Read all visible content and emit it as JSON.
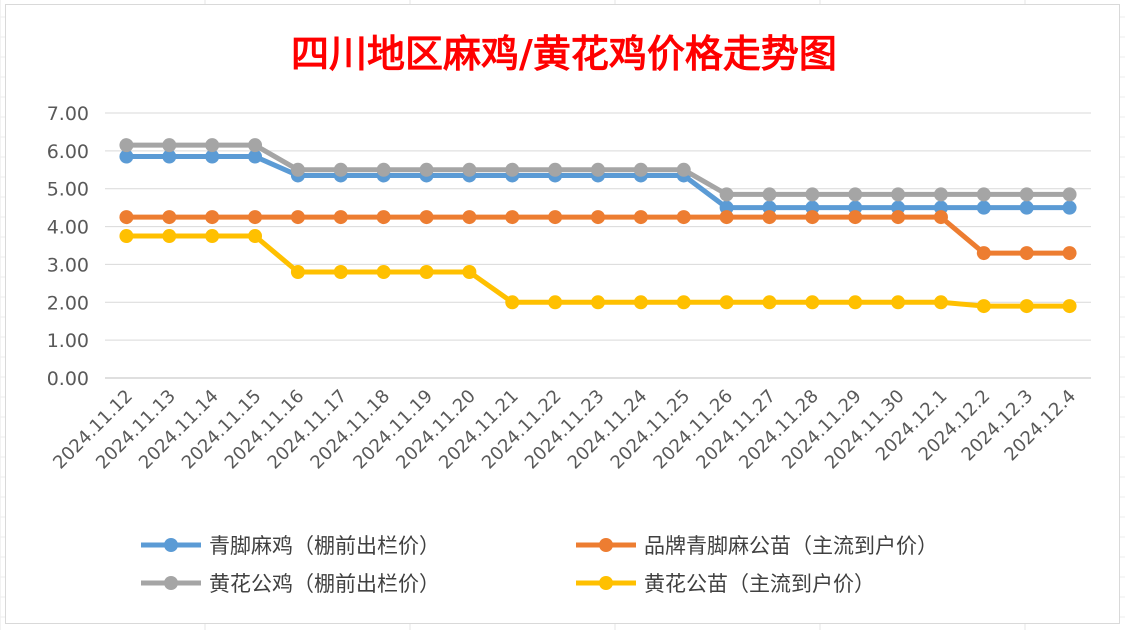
{
  "chart_data": {
    "type": "line",
    "title": "四川地区麻鸡/黄花鸡价格走势图",
    "xlabel": "",
    "ylabel": "",
    "ylim": [
      0,
      7
    ],
    "yticks": [
      "0.00",
      "1.00",
      "2.00",
      "3.00",
      "4.00",
      "5.00",
      "6.00",
      "7.00"
    ],
    "grid": true,
    "legend_position": "bottom",
    "categories": [
      "2024.11.12",
      "2024.11.13",
      "2024.11.14",
      "2024.11.15",
      "2024.11.16",
      "2024.11.17",
      "2024.11.18",
      "2024.11.19",
      "2024.11.20",
      "2024.11.21",
      "2024.11.22",
      "2024.11.23",
      "2024.11.24",
      "2024.11.25",
      "2024.11.26",
      "2024.11.27",
      "2024.11.28",
      "2024.11.29",
      "2024.11.30",
      "2024.12.1",
      "2024.12.2",
      "2024.12.3",
      "2024.12.4"
    ],
    "series": [
      {
        "name": "青脚麻鸡（棚前出栏价）",
        "color": "#5b9bd5",
        "values": [
          5.85,
          5.85,
          5.85,
          5.85,
          5.35,
          5.35,
          5.35,
          5.35,
          5.35,
          5.35,
          5.35,
          5.35,
          5.35,
          5.35,
          4.5,
          4.5,
          4.5,
          4.5,
          4.5,
          4.5,
          4.5,
          4.5,
          4.5
        ]
      },
      {
        "name": "品牌青脚麻公苗（主流到户价）",
        "color": "#ed7d31",
        "values": [
          4.25,
          4.25,
          4.25,
          4.25,
          4.25,
          4.25,
          4.25,
          4.25,
          4.25,
          4.25,
          4.25,
          4.25,
          4.25,
          4.25,
          4.25,
          4.25,
          4.25,
          4.25,
          4.25,
          4.25,
          3.3,
          3.3,
          3.3
        ]
      },
      {
        "name": "黄花公鸡（棚前出栏价）",
        "color": "#a5a5a5",
        "values": [
          6.15,
          6.15,
          6.15,
          6.15,
          5.5,
          5.5,
          5.5,
          5.5,
          5.5,
          5.5,
          5.5,
          5.5,
          5.5,
          5.5,
          4.85,
          4.85,
          4.85,
          4.85,
          4.85,
          4.85,
          4.85,
          4.85,
          4.85
        ]
      },
      {
        "name": "黄花公苗（主流到户价）",
        "color": "#ffc000",
        "values": [
          3.75,
          3.75,
          3.75,
          3.75,
          2.8,
          2.8,
          2.8,
          2.8,
          2.8,
          2.0,
          2.0,
          2.0,
          2.0,
          2.0,
          2.0,
          2.0,
          2.0,
          2.0,
          2.0,
          2.0,
          1.9,
          1.9,
          1.9
        ]
      }
    ]
  }
}
